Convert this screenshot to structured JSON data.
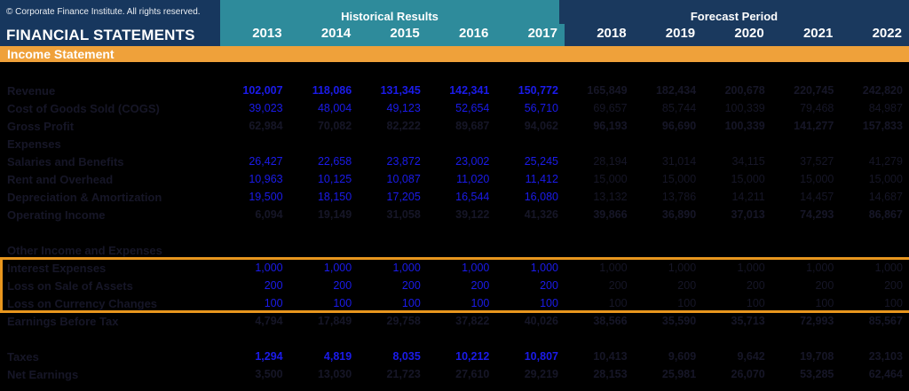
{
  "header": {
    "copyright": "© Corporate Finance Institute. All rights reserved.",
    "title": "FINANCIAL STATEMENTS",
    "historical_label": "Historical Results",
    "forecast_label": "Forecast Period",
    "years_historical": [
      "2013",
      "2014",
      "2015",
      "2016",
      "2017"
    ],
    "years_forecast": [
      "2018",
      "2019",
      "2020",
      "2021",
      "2022"
    ],
    "section_title": "Income Statement"
  },
  "colors": {
    "navy": "#17375e",
    "teal": "#2e8b9b",
    "forecast_navy": "#1a395e",
    "orange_bar": "#efa13a",
    "highlight_border": "#e8961e",
    "input_blue": "#1b1bea",
    "computed_dark": "#161627",
    "background": "#000000"
  },
  "table": {
    "rows": [
      {
        "type": "blank",
        "label": ""
      },
      {
        "label": "Revenue",
        "bold": true,
        "hist_color": "blue",
        "fore_color": "dark",
        "historical": [
          "102,007",
          "118,086",
          "131,345",
          "142,341",
          "150,772"
        ],
        "forecast": [
          "165,849",
          "182,434",
          "200,678",
          "220,745",
          "242,820"
        ]
      },
      {
        "label": "Cost of Goods Sold (COGS)",
        "bold": false,
        "hist_color": "blue",
        "fore_color": "dark",
        "historical": [
          "39,023",
          "48,004",
          "49,123",
          "52,654",
          "56,710"
        ],
        "forecast": [
          "69,657",
          "85,744",
          "100,339",
          "79,468",
          "84,987"
        ]
      },
      {
        "label": "Gross Profit",
        "bold": true,
        "hist_color": "dark",
        "fore_color": "dark",
        "historical": [
          "62,984",
          "70,082",
          "82,222",
          "89,687",
          "94,062"
        ],
        "forecast": [
          "96,193",
          "96,690",
          "100,339",
          "141,277",
          "157,833"
        ]
      },
      {
        "label": "Expenses",
        "bold": true,
        "hist_color": "dark",
        "fore_color": "dark",
        "historical": [],
        "forecast": []
      },
      {
        "label": "Salaries and Benefits",
        "bold": false,
        "hist_color": "blue",
        "fore_color": "dark",
        "historical": [
          "26,427",
          "22,658",
          "23,872",
          "23,002",
          "25,245"
        ],
        "forecast": [
          "28,194",
          "31,014",
          "34,115",
          "37,527",
          "41,279"
        ]
      },
      {
        "label": "Rent and Overhead",
        "bold": false,
        "hist_color": "blue",
        "fore_color": "dark",
        "historical": [
          "10,963",
          "10,125",
          "10,087",
          "11,020",
          "11,412"
        ],
        "forecast": [
          "15,000",
          "15,000",
          "15,000",
          "15,000",
          "15,000"
        ]
      },
      {
        "label": "Depreciation & Amortization",
        "bold": false,
        "hist_color": "blue",
        "fore_color": "dark",
        "historical": [
          "19,500",
          "18,150",
          "17,205",
          "16,544",
          "16,080"
        ],
        "forecast": [
          "13,132",
          "13,786",
          "14,211",
          "14,457",
          "14,687"
        ]
      },
      {
        "label": "Operating Income",
        "bold": true,
        "hist_color": "dark",
        "fore_color": "dark",
        "historical": [
          "6,094",
          "19,149",
          "31,058",
          "39,122",
          "41,326"
        ],
        "forecast": [
          "39,866",
          "36,890",
          "37,013",
          "74,293",
          "86,867"
        ]
      },
      {
        "type": "blank",
        "label": ""
      },
      {
        "label": "Other Income and Expenses",
        "bold": true,
        "hist_color": "dark",
        "fore_color": "dark",
        "historical": [],
        "forecast": []
      },
      {
        "label": "Interest Expenses",
        "bold": false,
        "hist_color": "blue",
        "fore_color": "dark",
        "historical": [
          "1,000",
          "1,000",
          "1,000",
          "1,000",
          "1,000"
        ],
        "forecast": [
          "1,000",
          "1,000",
          "1,000",
          "1,000",
          "1,000"
        ]
      },
      {
        "label": "Loss on Sale of Assets",
        "bold": false,
        "hist_color": "blue",
        "fore_color": "dark",
        "historical": [
          "200",
          "200",
          "200",
          "200",
          "200"
        ],
        "forecast": [
          "200",
          "200",
          "200",
          "200",
          "200"
        ]
      },
      {
        "label": "Loss on Currency Changes",
        "bold": false,
        "hist_color": "blue",
        "fore_color": "dark",
        "historical": [
          "100",
          "100",
          "100",
          "100",
          "100"
        ],
        "forecast": [
          "100",
          "100",
          "100",
          "100",
          "100"
        ]
      },
      {
        "label": "Earnings Before Tax",
        "bold": true,
        "hist_color": "dark",
        "fore_color": "dark",
        "historical": [
          "4,794",
          "17,849",
          "29,758",
          "37,822",
          "40,026"
        ],
        "forecast": [
          "38,566",
          "35,590",
          "35,713",
          "72,993",
          "85,567"
        ]
      },
      {
        "type": "blank",
        "label": ""
      },
      {
        "label": "Taxes",
        "bold": true,
        "hist_color": "blue",
        "fore_color": "dark",
        "historical": [
          "1,294",
          "4,819",
          "8,035",
          "10,212",
          "10,807"
        ],
        "forecast": [
          "10,413",
          "9,609",
          "9,642",
          "19,708",
          "23,103"
        ]
      },
      {
        "label": "Net Earnings",
        "bold": true,
        "hist_color": "dark",
        "fore_color": "dark",
        "historical": [
          "3,500",
          "13,030",
          "21,723",
          "27,610",
          "29,219"
        ],
        "forecast": [
          "28,153",
          "25,981",
          "26,070",
          "53,285",
          "62,464"
        ]
      }
    ],
    "highlight_rows": {
      "first_index": 11,
      "last_index": 13
    }
  }
}
